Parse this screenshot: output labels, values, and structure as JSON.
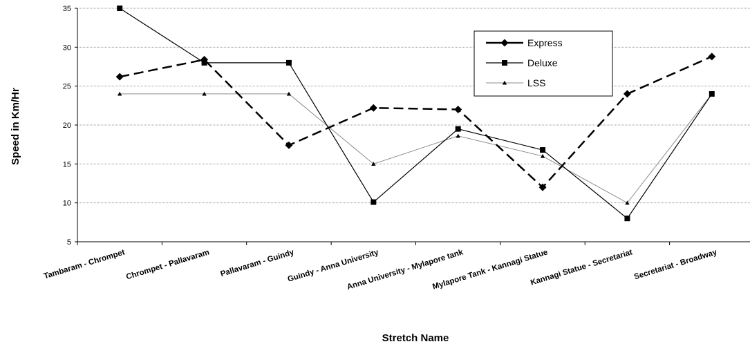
{
  "chart_data": {
    "type": "line",
    "title": "",
    "xlabel": "Stretch Name",
    "ylabel": "Speed in Km/Hr",
    "ylim": [
      5,
      35
    ],
    "yticks": [
      5,
      10,
      15,
      20,
      25,
      30,
      35
    ],
    "grid": "horizontal",
    "legend_position": "top-right",
    "categories": [
      "Tambaram - Chrompet",
      "Chrompet - Pallavaram",
      "Pallavaram - Guindy",
      "Guindy - Anna University",
      "Anna University - Mylapore tank",
      "Mylapore Tank - Kannagi Statue",
      "Kannagi Statue - Secretariat",
      "Secretariat - Broadway"
    ],
    "series": [
      {
        "name": "Express",
        "marker": "diamond",
        "line": "dashed-thick",
        "color": "#000000",
        "values": [
          26.2,
          28.4,
          17.4,
          22.2,
          22.0,
          12.0,
          24.0,
          28.8
        ]
      },
      {
        "name": "Deluxe",
        "marker": "square",
        "line": "solid",
        "color": "#000000",
        "values": [
          35.0,
          28.0,
          28.0,
          10.1,
          19.5,
          16.8,
          8.0,
          24.0
        ]
      },
      {
        "name": "LSS",
        "marker": "triangle",
        "line": "thin-gray",
        "color": "#808080",
        "values": [
          24.0,
          24.0,
          24.0,
          15.0,
          18.6,
          16.0,
          10.0,
          24.0
        ]
      }
    ]
  }
}
